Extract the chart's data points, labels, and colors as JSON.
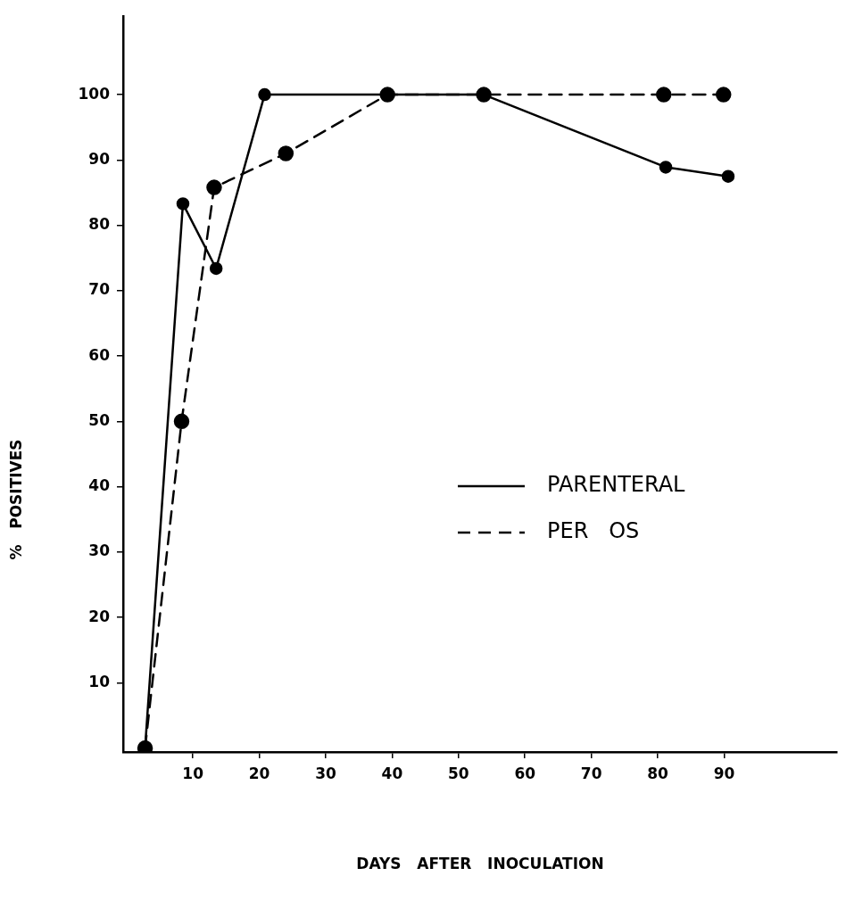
{
  "chart_data": {
    "type": "line",
    "xlabel": "DAYS   AFTER   INOCULATION",
    "ylabel": "%   POSITIVES",
    "xlim": [
      -0.5,
      107
    ],
    "ylim": [
      -0.6,
      112
    ],
    "xticks": [
      10,
      20,
      30,
      40,
      50,
      60,
      70,
      80,
      90
    ],
    "yticks": [
      10,
      20,
      30,
      40,
      50,
      60,
      70,
      80,
      90,
      100
    ],
    "grid": false,
    "legend": "right",
    "marker": "circle",
    "series": [
      {
        "name": "PARENTERAL",
        "color": "#000000",
        "line_style": "solid",
        "x": [
          2.8,
          8.5,
          13.5,
          20.8,
          39.3,
          53.8,
          81.2,
          90.6
        ],
        "values": [
          0,
          83.3,
          73.4,
          100,
          100,
          100,
          88.9,
          87.5
        ]
      },
      {
        "name": "PER   OS",
        "color": "#000000",
        "line_style": "dashed",
        "x": [
          2.8,
          8.3,
          13.2,
          24,
          39.3,
          53.8,
          80.9,
          89.9
        ],
        "values": [
          0,
          50,
          85.8,
          91,
          100,
          100,
          100,
          100
        ]
      }
    ]
  }
}
